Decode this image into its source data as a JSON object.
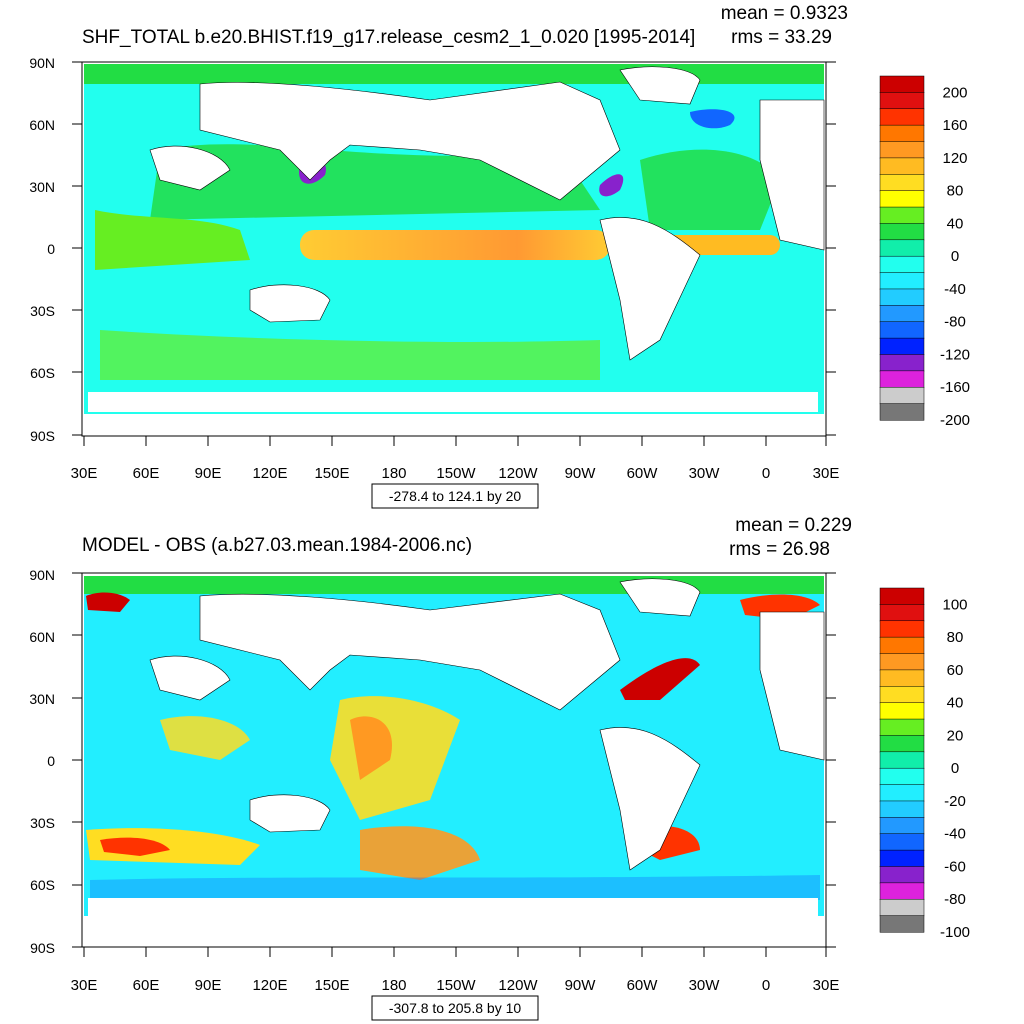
{
  "panels": [
    {
      "title": "SHF_TOTAL b.e20.BHIST.f19_g17.release_cesm2_1_0.020 [1995-2014]",
      "stats": {
        "mean": "mean = 0.9323",
        "rms": "rms = 33.29"
      },
      "range_label": "-278.4 to 124.1 by 20",
      "colorbar_labels": [
        "200",
        "160",
        "120",
        "80",
        "40",
        "0",
        "-40",
        "-80",
        "-120",
        "-160",
        "-200"
      ]
    },
    {
      "title": "MODEL - OBS (a.b27.03.mean.1984-2006.nc)",
      "stats": {
        "mean": "mean = 0.229",
        "rms": "rms = 26.98"
      },
      "range_label": "-307.8 to 205.8 by 10",
      "colorbar_labels": [
        "100",
        "80",
        "60",
        "40",
        "20",
        "0",
        "-20",
        "-40",
        "-60",
        "-80",
        "-100"
      ]
    }
  ],
  "lat_labels": [
    "90N",
    "60N",
    "30N",
    "0",
    "30S",
    "60S",
    "90S"
  ],
  "lon_labels": [
    "30E",
    "60E",
    "90E",
    "120E",
    "150E",
    "180",
    "150W",
    "120W",
    "90W",
    "60W",
    "30W",
    "0",
    "30E"
  ],
  "palette": [
    "#cc0000",
    "#e01010",
    "#ff3300",
    "#ff7700",
    "#ff9922",
    "#ffbb22",
    "#ffdd22",
    "#ffff00",
    "#66ee22",
    "#22dd44",
    "#11eeaa",
    "#22ffee",
    "#22eeff",
    "#22ccff",
    "#2299ff",
    "#1166ff",
    "#0022ff",
    "#8822cc",
    "#dd22dd",
    "#cccccc",
    "#777777"
  ]
}
